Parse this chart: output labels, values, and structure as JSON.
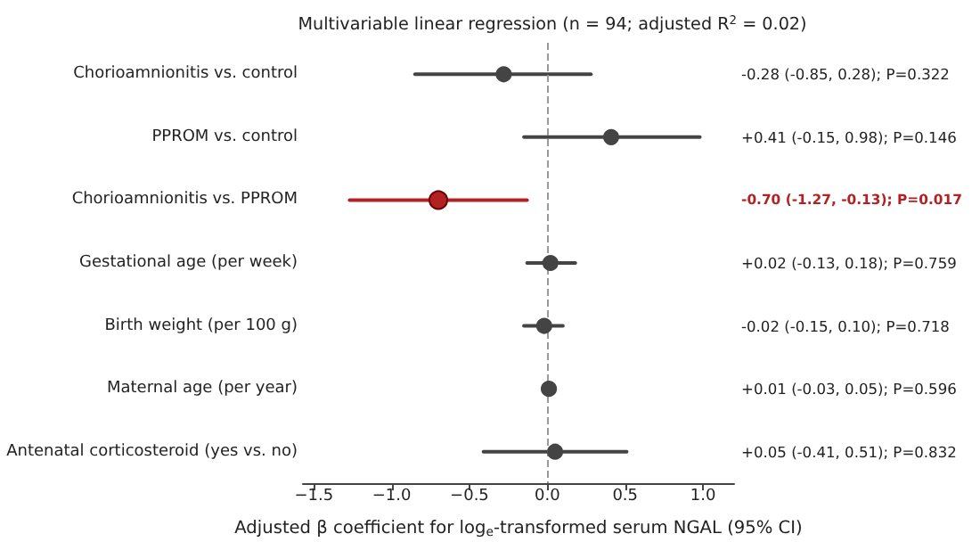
{
  "chart_data": {
    "type": "scatter",
    "orientation": "horizontal",
    "title": "Multivariable linear regression (n = 94; adjusted R$^{2}$ = 0.02)",
    "xlabel": "Adjusted β coefficient for log$_{e}$-transformed serum NGAL (95% CI)",
    "categories": [
      "Chorioamnionitis vs. control",
      "PPROM vs. control",
      "Chorioamnionitis vs. PPROM",
      "Gestational age (per week)",
      "Birth weight (per 100 g)",
      "Maternal age (per year)",
      "Antenatal corticosteroid (yes vs. no)"
    ],
    "values": [
      -0.28,
      0.41,
      -0.7,
      0.02,
      -0.02,
      0.01,
      0.05
    ],
    "errors": [
      [
        -0.85,
        0.28
      ],
      [
        -0.15,
        0.98
      ],
      [
        -1.27,
        -0.13
      ],
      [
        -0.13,
        0.18
      ],
      [
        -0.15,
        0.1
      ],
      [
        -0.03,
        0.05
      ],
      [
        -0.41,
        0.51
      ]
    ],
    "colors": [
      "#444444",
      "#444444",
      "#b22222",
      "#444444",
      "#444444",
      "#444444",
      "#444444"
    ],
    "annotations": [
      "-0.28 (-0.85, 0.28); P=0.322",
      "+0.41 (-0.15, 0.98); P=0.146",
      "-0.70 (-1.27, -0.13); P=0.017",
      "+0.02 (-0.13, 0.18); P=0.759",
      "-0.02 (-0.15, 0.10); P=0.718",
      "+0.01 (-0.03, 0.05); P=0.596",
      "+0.05 (-0.41, 0.51); P=0.832"
    ],
    "xlim": [
      -1.57,
      1.2
    ],
    "xticks": [
      {
        "value": -1.5,
        "label": "−1.5"
      },
      {
        "value": -1.0,
        "label": "−1.0"
      },
      {
        "value": -0.5,
        "label": "−0.5"
      },
      {
        "value": 0.0,
        "label": "0.0"
      },
      {
        "value": 0.5,
        "label": "0.5"
      },
      {
        "value": 1.0,
        "label": "1.0"
      }
    ],
    "ref_lines": [
      {
        "axis": "x",
        "value": 0,
        "color": "#999999",
        "line_style": "dashed"
      }
    ],
    "marker": "circle",
    "grid": false
  }
}
